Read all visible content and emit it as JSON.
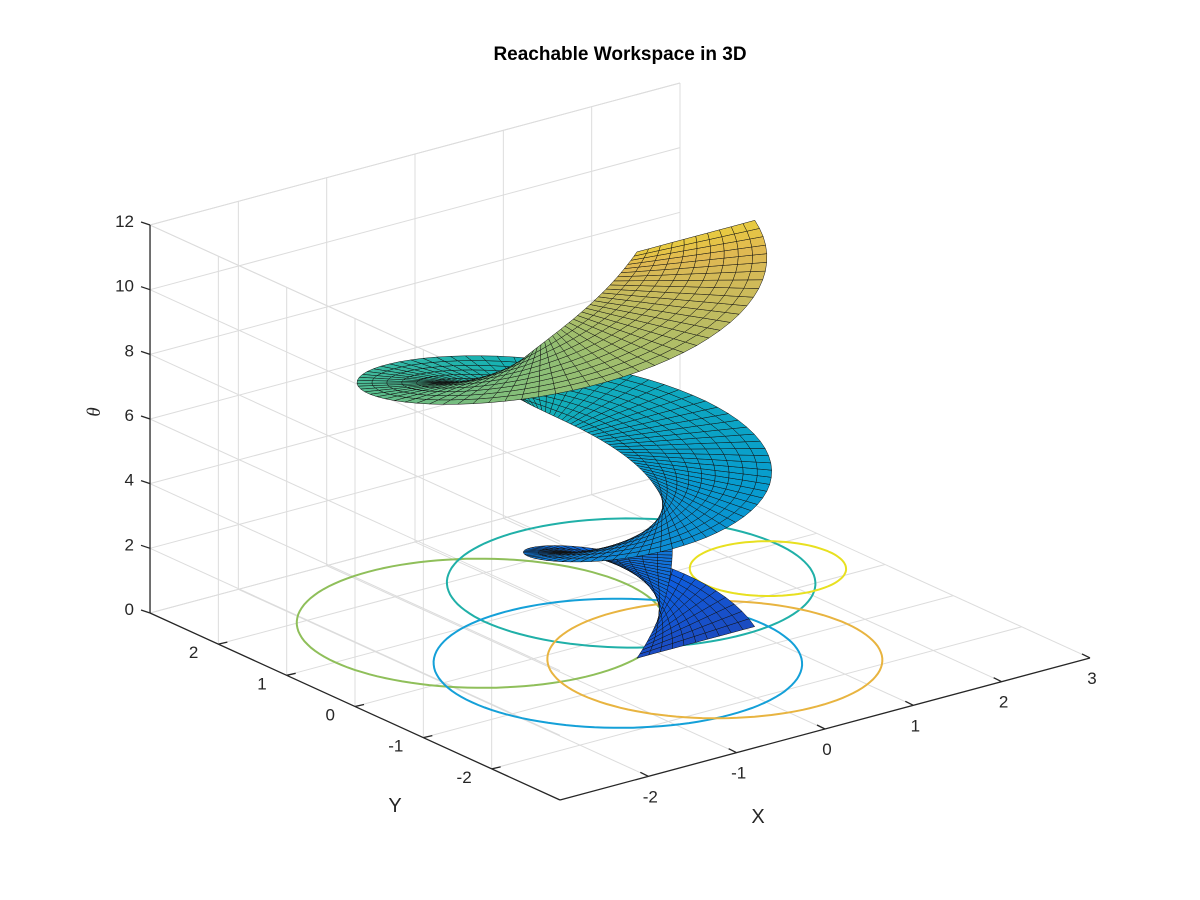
{
  "chart_data": {
    "type": "surface",
    "title": "Reachable Workspace in 3D",
    "xlabel": "X",
    "ylabel": "Y",
    "zlabel": "θ",
    "xlim": [
      -3,
      3
    ],
    "ylim": [
      -3,
      3
    ],
    "zlim": [
      0,
      12
    ],
    "x_ticks": [
      "-2",
      "-1",
      "0",
      "1",
      "2",
      "3"
    ],
    "y_ticks": [
      "-2",
      "-1",
      "0",
      "1",
      "2"
    ],
    "z_ticks": [
      "0",
      "2",
      "4",
      "6",
      "8",
      "10",
      "12"
    ],
    "grid": true,
    "colormap": "parula",
    "surface": {
      "description_of_shape": "helical sweep",
      "center_path_start": [
        -0.35,
        -0.55,
        0
      ],
      "center_path_radius": 0.9,
      "tube_radius": 1.45,
      "theta_range": [
        0,
        12.566
      ]
    },
    "projected_curves": [
      {
        "center_x": -0.8,
        "center_y": 1.0,
        "radius": 1.65,
        "color": "#8fbf5a"
      },
      {
        "center_x": 0.9,
        "center_y": 1.0,
        "radius": 1.65,
        "color": "#20b0a8"
      },
      {
        "center_x": -0.45,
        "center_y": -0.55,
        "radius": 1.65,
        "color": "#14a0d8"
      },
      {
        "center_x": 0.3,
        "center_y": -1.0,
        "radius": 1.5,
        "color": "#e8b440"
      },
      {
        "center_x": 2.1,
        "center_y": 0.55,
        "radius": 0.7,
        "color": "#e8e020"
      }
    ]
  }
}
